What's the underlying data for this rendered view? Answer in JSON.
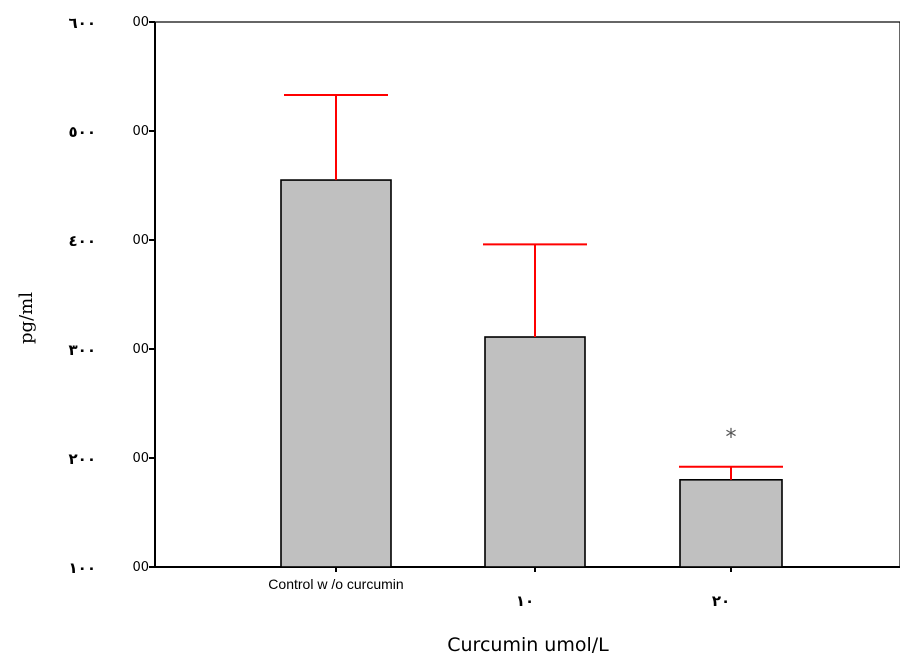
{
  "chart_data": {
    "type": "bar",
    "title": "",
    "xlabel": "Curcumin umol/L",
    "ylabel": "pg/ml",
    "ylim": [
      100,
      600
    ],
    "yticks": [
      100,
      200,
      300,
      400,
      500,
      600
    ],
    "ytick_labels_en": [
      "00",
      "00",
      "00",
      "00",
      "00",
      "00"
    ],
    "ytick_labels_ar": [
      "١٠٠",
      "٢٠٠",
      "٣٠٠",
      "٤٠٠",
      "٥٠٠",
      "٦٠٠"
    ],
    "categories": [
      "Control w /o curcumin",
      "١٠",
      "٢٠"
    ],
    "values": [
      455,
      311,
      180
    ],
    "error_upper": [
      533,
      396,
      192
    ],
    "annotations": [
      "",
      "",
      "*"
    ],
    "grid": false,
    "colors": {
      "bar_fill": "#c0c0c0",
      "bar_stroke": "#000000",
      "error_bar": "#ff0000",
      "axis": "#000000"
    }
  }
}
